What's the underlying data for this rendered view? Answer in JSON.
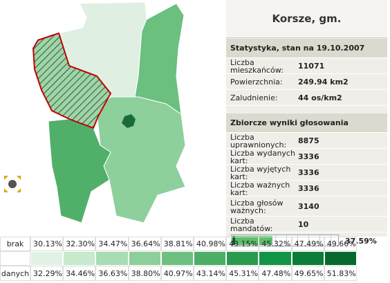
{
  "panel": {
    "title": "Korsze, gm.",
    "sections": [
      {
        "heading": "Statystyka, stan na 19.10.2007",
        "rows": [
          [
            "Liczba mieszkańców:",
            "11071"
          ],
          [
            "Powierzchnia:",
            "249.94 km2"
          ],
          [
            "Zaludnienie:",
            "44 os/km2"
          ]
        ]
      },
      {
        "heading": "Zbiorcze wyniki głosowania",
        "rows": [
          [
            "Liczba uprawnionych:",
            "8875"
          ],
          [
            "Liczba wydanych kart:",
            "3336"
          ],
          [
            "Liczba wyjętych kart:",
            "3336"
          ],
          [
            "Liczba ważnych kart:",
            "3336"
          ],
          [
            "Liczba głosów ważnych:",
            "3140"
          ],
          [
            "Liczba mandatów:",
            "10"
          ]
        ]
      }
    ],
    "turnout": {
      "value": 37.59,
      "label": "37.59%"
    }
  },
  "legend": {
    "label_top": "brak",
    "label_bottom": "danych",
    "from": [
      "30.13%",
      "32.30%",
      "34.47%",
      "36.64%",
      "38.81%",
      "40.98%",
      "43.15%",
      "45.32%",
      "47.49%",
      "49.66%"
    ],
    "to": [
      "32.29%",
      "34.46%",
      "36.63%",
      "38.80%",
      "40.97%",
      "43.14%",
      "45.31%",
      "47.48%",
      "49.65%",
      "51.83%"
    ]
  }
}
